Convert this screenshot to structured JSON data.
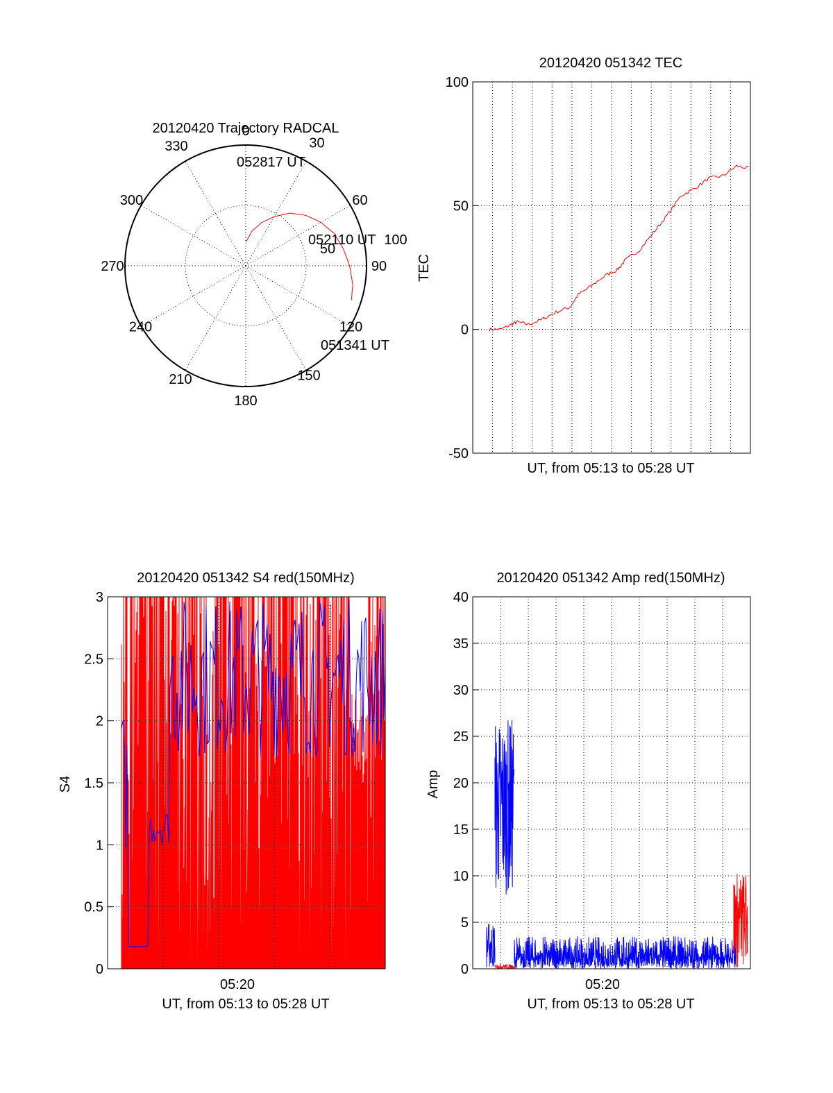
{
  "colors": {
    "red": "#ff0000",
    "blue": "#0000ff",
    "axis": "#000000"
  },
  "chart_data": [
    {
      "id": "trajectory",
      "type": "polar",
      "title": "20120420 Trajectory RADCAL",
      "angle_labels": [
        "0",
        "30",
        "60",
        "90",
        "120",
        "150",
        "180",
        "210",
        "240",
        "270",
        "300",
        "330"
      ],
      "radial_labels": [
        "50",
        "100"
      ],
      "radius_max": 100,
      "grid": true,
      "track": {
        "color": "#ff0000",
        "points": [
          [
            1,
            20
          ],
          [
            10,
            29
          ],
          [
            20,
            38
          ],
          [
            30,
            47
          ],
          [
            40,
            57
          ],
          [
            50,
            65
          ],
          [
            60,
            72
          ],
          [
            70,
            78
          ],
          [
            80,
            82
          ],
          [
            90,
            86
          ],
          [
            100,
            90
          ],
          [
            108,
            92
          ]
        ]
      },
      "annotations": [
        "052817 UT",
        "052110 UT",
        "051341 UT"
      ]
    },
    {
      "id": "tec",
      "type": "line",
      "title": "20120420 051342 TEC",
      "xlabel": "UT, from 05:13 to 05:28 UT",
      "ylabel": "TEC",
      "ylim": [
        -50,
        100
      ],
      "yticks": [
        "100",
        "50",
        "0",
        "-50"
      ],
      "grid": true,
      "series": [
        {
          "color": "#ff0000",
          "x": [
            0.06,
            0.1,
            0.14,
            0.16,
            0.2,
            0.25,
            0.3,
            0.35,
            0.38,
            0.42,
            0.48,
            0.52,
            0.55,
            0.6,
            0.65,
            0.7,
            0.75,
            0.8,
            0.85,
            0.9,
            0.95,
            1.0
          ],
          "y": [
            0,
            0,
            2,
            3,
            2,
            4,
            7,
            9,
            14,
            17,
            22,
            24,
            28,
            32,
            39,
            46,
            54,
            57,
            61,
            62,
            66,
            65
          ]
        }
      ]
    },
    {
      "id": "s4",
      "type": "line",
      "title": "20120420 051342 S4 red(150MHz)",
      "xlabel": "UT, from 05:13 to 05:28 UT",
      "ylabel": "S4",
      "xtick_label": "05:20",
      "ylim": [
        0,
        3
      ],
      "yticks": [
        "3",
        "2.5",
        "2",
        "1.5",
        "1",
        "0.5",
        "0"
      ],
      "grid": true,
      "series": [
        {
          "color": "#ff0000",
          "description_values": "oscillating 0–3"
        },
        {
          "color": "#0000ff",
          "description_values": "oscillating 0.2–3"
        }
      ]
    },
    {
      "id": "amp",
      "type": "line",
      "title": "20120420 051342 Amp red(150MHz)",
      "xlabel": "UT, from 05:13 to 05:28 UT",
      "ylabel": "Amp",
      "xtick_label": "05:20",
      "ylim": [
        0,
        40
      ],
      "yticks": [
        "40",
        "35",
        "30",
        "25",
        "20",
        "15",
        "10",
        "5",
        "0"
      ],
      "grid": true,
      "series": [
        {
          "color": "#0000ff",
          "segments": [
            [
              0.05,
              0.08,
              0,
              5
            ],
            [
              0.08,
              0.15,
              8,
              27
            ],
            [
              0.15,
              0.95,
              0,
              3.5
            ]
          ]
        },
        {
          "color": "#ff0000",
          "segments": [
            [
              0.08,
              0.15,
              0,
              0.5
            ],
            [
              0.94,
              0.99,
              0,
              10.5
            ]
          ]
        }
      ]
    }
  ]
}
